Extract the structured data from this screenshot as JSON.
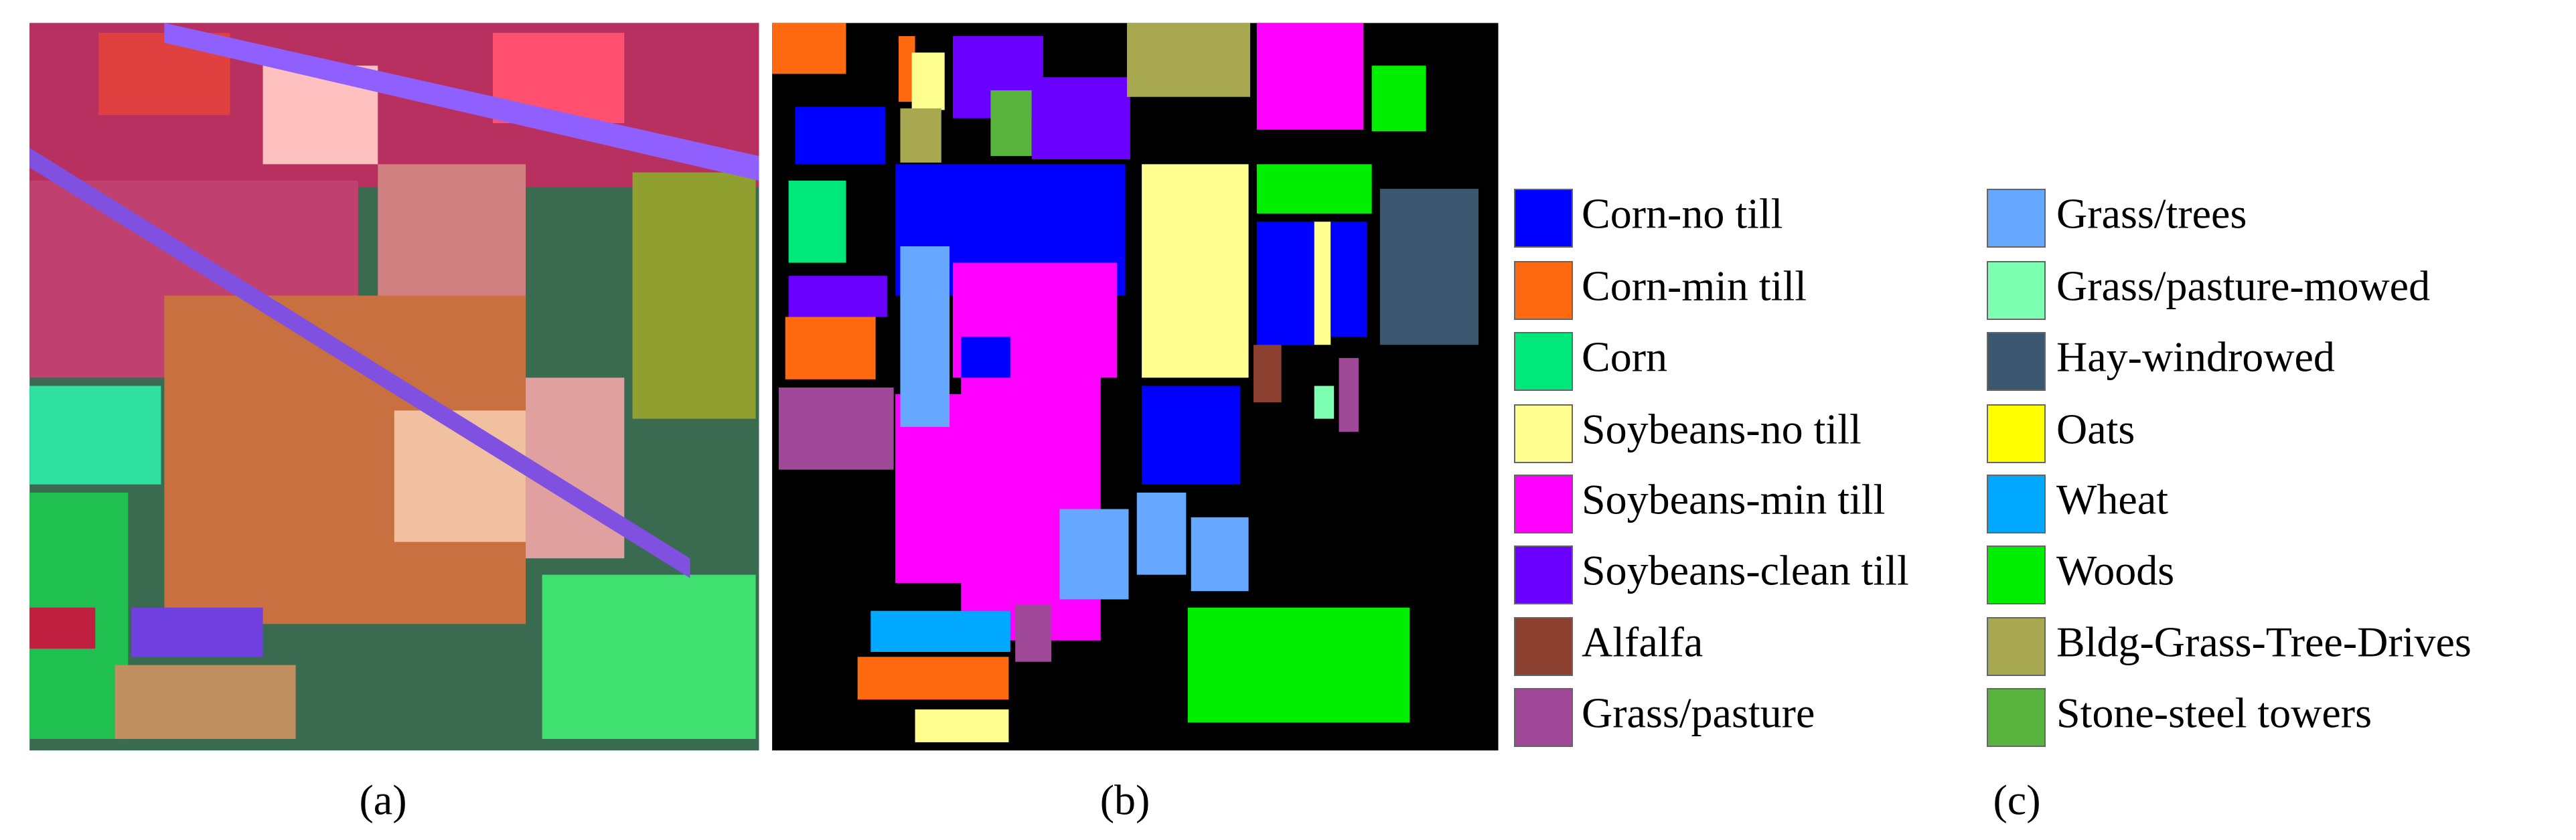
{
  "panels": [
    {
      "caption": "(a)"
    },
    {
      "caption": "(b)"
    },
    {
      "caption": "(c)"
    }
  ],
  "legend": {
    "items": [
      {
        "label": "Corn-no till",
        "color": "#0000ff"
      },
      {
        "label": "Corn-min till",
        "color": "#ff6a10"
      },
      {
        "label": "Corn",
        "color": "#00e87a"
      },
      {
        "label": "Soybeans-no till",
        "color": "#ffff90"
      },
      {
        "label": "Soybeans-min till",
        "color": "#ff00ff"
      },
      {
        "label": "Soybeans-clean till",
        "color": "#6a00ff"
      },
      {
        "label": "Alfalfa",
        "color": "#8b4030"
      },
      {
        "label": "Grass/pasture",
        "color": "#a04898"
      },
      {
        "label": "Grass/trees",
        "color": "#66a8ff"
      },
      {
        "label": "Grass/pasture-mowed",
        "color": "#7cffb0"
      },
      {
        "label": "Hay-windrowed",
        "color": "#3c5870"
      },
      {
        "label": "Oats",
        "color": "#ffff00"
      },
      {
        "label": "Wheat",
        "color": "#00a8ff"
      },
      {
        "label": "Woods",
        "color": "#00ee00"
      },
      {
        "label": "Bldg-Grass-Tree-Drives",
        "color": "#a8a850"
      },
      {
        "label": "Stone-steel towers",
        "color": "#58b43c"
      }
    ]
  }
}
